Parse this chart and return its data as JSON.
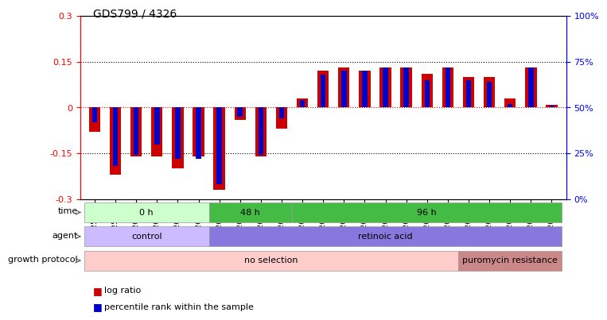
{
  "title": "GDS799 / 4326",
  "samples": [
    "GSM25978",
    "GSM25979",
    "GSM26006",
    "GSM26007",
    "GSM26008",
    "GSM26009",
    "GSM26010",
    "GSM26011",
    "GSM26012",
    "GSM26013",
    "GSM26014",
    "GSM26015",
    "GSM26016",
    "GSM26017",
    "GSM26018",
    "GSM26019",
    "GSM26020",
    "GSM26021",
    "GSM26022",
    "GSM26023",
    "GSM26024",
    "GSM26025",
    "GSM26026"
  ],
  "log_ratio": [
    -0.08,
    -0.22,
    -0.16,
    -0.16,
    -0.2,
    -0.16,
    -0.27,
    -0.04,
    -0.16,
    -0.07,
    0.03,
    0.12,
    0.13,
    0.12,
    0.13,
    0.13,
    0.11,
    0.13,
    0.1,
    0.1,
    0.03,
    0.13,
    0.01
  ],
  "percentile_rank": [
    42,
    18,
    24,
    30,
    22,
    22,
    8,
    45,
    24,
    44,
    54,
    68,
    70,
    70,
    72,
    72,
    65,
    72,
    65,
    64,
    52,
    72,
    51
  ],
  "ylim_left": [
    -0.3,
    0.3
  ],
  "ylim_right": [
    0,
    100
  ],
  "yticks_left": [
    -0.3,
    -0.15,
    0,
    0.15,
    0.3
  ],
  "yticks_right": [
    0,
    25,
    50,
    75,
    100
  ],
  "log_ratio_color": "#cc0000",
  "percentile_color": "#0000cc",
  "time_segments": [
    {
      "label": "0 h",
      "start": 0,
      "end": 5,
      "color": "#ccffcc"
    },
    {
      "label": "48 h",
      "start": 6,
      "end": 9,
      "color": "#44bb44"
    },
    {
      "label": "96 h",
      "start": 10,
      "end": 22,
      "color": "#44bb44"
    }
  ],
  "agent_segments": [
    {
      "label": "control",
      "start": 0,
      "end": 5,
      "color": "#ccbbff"
    },
    {
      "label": "retinoic acid",
      "start": 6,
      "end": 22,
      "color": "#8877dd"
    }
  ],
  "growth_segments": [
    {
      "label": "no selection",
      "start": 0,
      "end": 17,
      "color": "#ffcccc"
    },
    {
      "label": "puromycin resistance",
      "start": 18,
      "end": 22,
      "color": "#cc8888"
    }
  ]
}
